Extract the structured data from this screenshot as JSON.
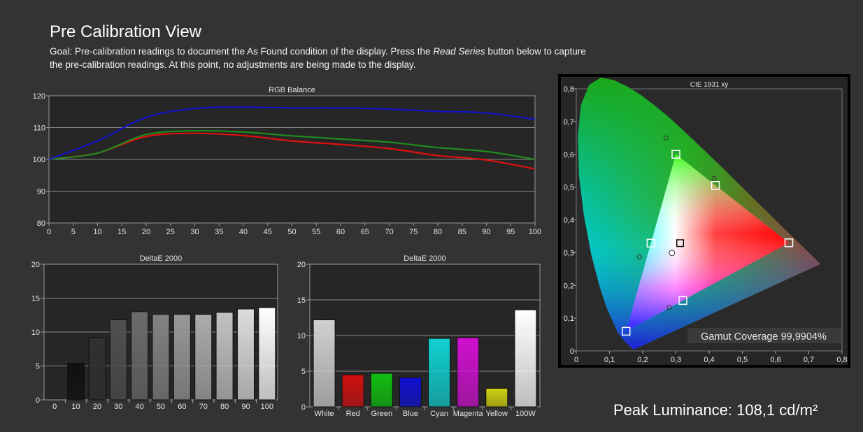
{
  "header": {
    "title": "Pre Calibration View",
    "goal_prefix": "Goal: Pre-calibration readings to document the As Found condition of the display. Press the ",
    "goal_button": "Read Series",
    "goal_suffix": " button below to capture the pre-calibration readings. At this point, no adjustments are being made to the display."
  },
  "peak": {
    "label": "Peak Luminance: 108,1 cd/m²"
  },
  "gamut": {
    "label": "Gamut Coverage 99,9904%"
  },
  "colors": {
    "red": "#e01010",
    "green": "#1e8c1e",
    "blue": "#1414c8",
    "grid": "#888888",
    "panel": "#262626",
    "border": "#999999"
  },
  "chart_data": [
    {
      "type": "line",
      "title": "RGB Balance",
      "xlabel": "",
      "ylabel": "",
      "x": [
        0,
        10,
        20,
        30,
        40,
        50,
        60,
        70,
        80,
        90,
        100
      ],
      "xticks": [
        0,
        5,
        10,
        15,
        20,
        25,
        30,
        35,
        40,
        45,
        50,
        55,
        60,
        65,
        70,
        75,
        80,
        85,
        90,
        95,
        100
      ],
      "yticks": [
        80,
        90,
        100,
        110,
        120
      ],
      "xlim": [
        0,
        100
      ],
      "ylim": [
        80,
        120
      ],
      "grid": true,
      "series": [
        {
          "color": "#e01010",
          "values": [
            100,
            102,
            107.2,
            108.2,
            107.5,
            105.8,
            104.7,
            103.4,
            101.2,
            99.8,
            97
          ]
        },
        {
          "color": "#1e8c1e",
          "values": [
            100,
            102,
            107.8,
            109,
            108.6,
            107.4,
            106.4,
            105.4,
            103.7,
            102.5,
            100
          ]
        },
        {
          "color": "#1414c8",
          "values": [
            100,
            105.8,
            113.2,
            116,
            116.4,
            116.2,
            116.2,
            115.8,
            115.1,
            114.6,
            112.6
          ]
        }
      ]
    },
    {
      "type": "bar",
      "title": "DeltaE 2000",
      "categories": [
        "0",
        "10",
        "20",
        "30",
        "40",
        "50",
        "60",
        "70",
        "80",
        "90",
        "100"
      ],
      "values": [
        0,
        5.4,
        9.2,
        11.8,
        13,
        12.6,
        12.6,
        12.6,
        12.9,
        13.4,
        13.6
      ],
      "yticks": [
        0,
        5,
        10,
        15,
        20
      ],
      "ylim": [
        0,
        20
      ],
      "grid": true,
      "bar_colors": [
        "#000000",
        "#101010",
        "#303030",
        "#505050",
        "#6c6c6c",
        "#828282",
        "#989898",
        "#acacac",
        "#c2c2c2",
        "#dddddd",
        "#ffffff"
      ]
    },
    {
      "type": "bar",
      "title": "DeltaE 2000",
      "categories": [
        "White",
        "Red",
        "Green",
        "Blue",
        "Cyan",
        "Magenta",
        "Yellow",
        "100W"
      ],
      "values": [
        12.2,
        4.5,
        4.7,
        4.1,
        9.6,
        9.7,
        2.6,
        13.6
      ],
      "yticks": [
        0,
        5,
        10,
        15,
        20
      ],
      "ylim": [
        0,
        20
      ],
      "grid": true,
      "bar_colors": [
        "#d0d0d0",
        "#d01010",
        "#10c010",
        "#1010d0",
        "#10d0d0",
        "#d010d0",
        "#d0d010",
        "#ffffff"
      ]
    },
    {
      "type": "scatter",
      "title": "CIE 1931 xy",
      "xticks": [
        "0",
        "0,1",
        "0,2",
        "0,3",
        "0,4",
        "0,5",
        "0,6",
        "0,7",
        "0,8"
      ],
      "yticks": [
        "0",
        "0,1",
        "0,2",
        "0,3",
        "0,4",
        "0,5",
        "0,6",
        "0,7",
        "0,8"
      ],
      "xlim": [
        0,
        0.8
      ],
      "ylim": [
        0,
        0.8
      ],
      "targets": [
        {
          "name": "Red",
          "x": 0.64,
          "y": 0.33
        },
        {
          "name": "Green",
          "x": 0.3,
          "y": 0.6
        },
        {
          "name": "Blue",
          "x": 0.15,
          "y": 0.06
        },
        {
          "name": "Yellow",
          "x": 0.419,
          "y": 0.505
        },
        {
          "name": "Cyan",
          "x": 0.225,
          "y": 0.329
        },
        {
          "name": "Magenta",
          "x": 0.321,
          "y": 0.154
        },
        {
          "name": "White",
          "x": 0.3127,
          "y": 0.329
        }
      ],
      "measured": [
        {
          "name": "Green",
          "x": 0.27,
          "y": 0.65
        },
        {
          "name": "Yellow",
          "x": 0.415,
          "y": 0.526
        },
        {
          "name": "Cyan",
          "x": 0.19,
          "y": 0.287
        },
        {
          "name": "Magenta",
          "x": 0.28,
          "y": 0.133
        },
        {
          "name": "White",
          "x": 0.288,
          "y": 0.299
        }
      ]
    }
  ]
}
